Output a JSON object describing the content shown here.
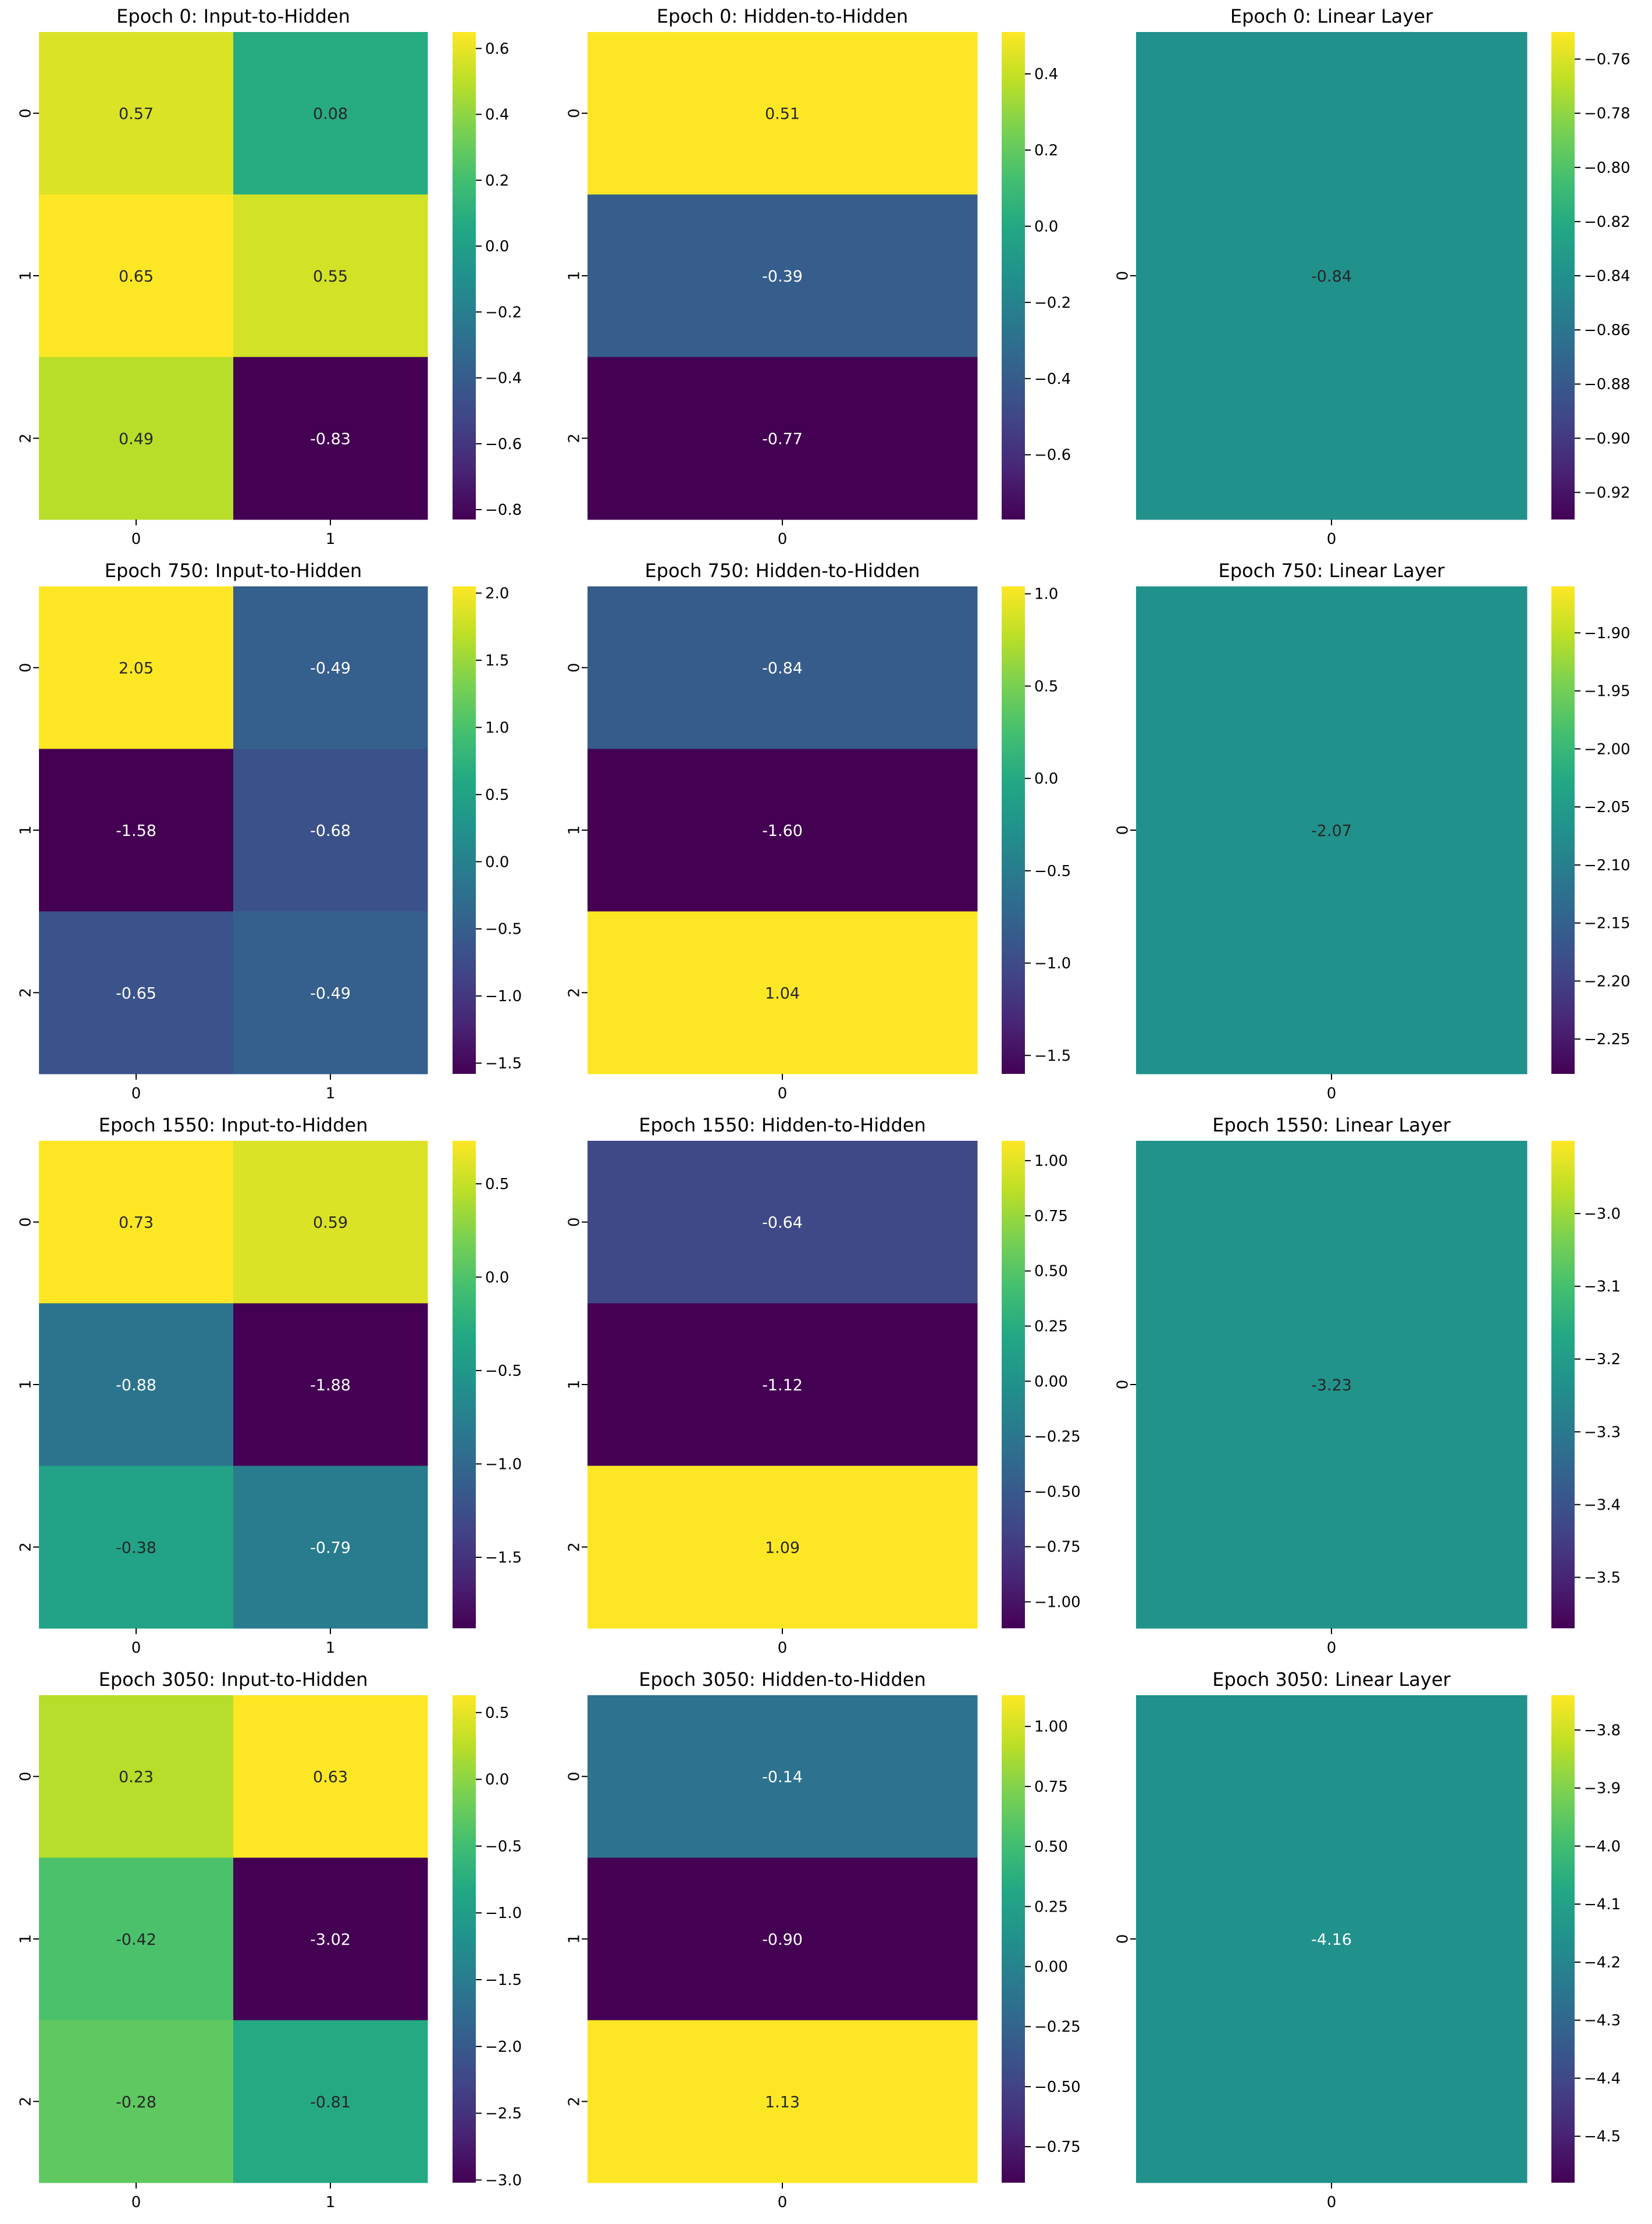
{
  "colormap": "viridis",
  "chart_data": [
    {
      "type": "heatmap",
      "title": "Epoch 0: Input-to-Hidden",
      "row_labels": [
        "0",
        "1",
        "2"
      ],
      "col_labels": [
        "0",
        "1"
      ],
      "values": [
        [
          0.57,
          0.08
        ],
        [
          0.65,
          0.55
        ],
        [
          0.49,
          -0.83
        ]
      ],
      "colorbar": {
        "vmin": -0.83,
        "vmax": 0.65,
        "ticks": [
          0.6,
          0.4,
          0.2,
          0.0,
          -0.2,
          -0.4,
          -0.6,
          -0.8
        ],
        "tick_labels": [
          "0.6",
          "0.4",
          "0.2",
          "0.0",
          "−0.2",
          "−0.4",
          "−0.6",
          "−0.8"
        ]
      }
    },
    {
      "type": "heatmap",
      "title": "Epoch 0: Hidden-to-Hidden",
      "row_labels": [
        "0",
        "1",
        "2"
      ],
      "col_labels": [
        "0"
      ],
      "values": [
        [
          0.51
        ],
        [
          -0.39
        ],
        [
          -0.77
        ]
      ],
      "colorbar": {
        "vmin": -0.77,
        "vmax": 0.51,
        "ticks": [
          0.4,
          0.2,
          0.0,
          -0.2,
          -0.4,
          -0.6
        ],
        "tick_labels": [
          "0.4",
          "0.2",
          "0.0",
          "−0.2",
          "−0.4",
          "−0.6"
        ]
      }
    },
    {
      "type": "heatmap",
      "title": "Epoch 0: Linear Layer",
      "row_labels": [
        "0"
      ],
      "col_labels": [
        "0"
      ],
      "values": [
        [
          -0.84
        ]
      ],
      "colorbar": {
        "vmin": -0.93,
        "vmax": -0.75,
        "ticks": [
          -0.76,
          -0.78,
          -0.8,
          -0.82,
          -0.84,
          -0.86,
          -0.88,
          -0.9,
          -0.92
        ],
        "tick_labels": [
          "−0.76",
          "−0.78",
          "−0.80",
          "−0.82",
          "−0.84",
          "−0.86",
          "−0.88",
          "−0.90",
          "−0.92"
        ]
      }
    },
    {
      "type": "heatmap",
      "title": "Epoch 750: Input-to-Hidden",
      "row_labels": [
        "0",
        "1",
        "2"
      ],
      "col_labels": [
        "0",
        "1"
      ],
      "values": [
        [
          2.05,
          -0.49
        ],
        [
          -1.58,
          -0.68
        ],
        [
          -0.65,
          -0.49
        ]
      ],
      "colorbar": {
        "vmin": -1.58,
        "vmax": 2.05,
        "ticks": [
          2.0,
          1.5,
          1.0,
          0.5,
          0.0,
          -0.5,
          -1.0,
          -1.5
        ],
        "tick_labels": [
          "2.0",
          "1.5",
          "1.0",
          "0.5",
          "0.0",
          "−0.5",
          "−1.0",
          "−1.5"
        ]
      }
    },
    {
      "type": "heatmap",
      "title": "Epoch 750: Hidden-to-Hidden",
      "row_labels": [
        "0",
        "1",
        "2"
      ],
      "col_labels": [
        "0"
      ],
      "values": [
        [
          -0.84
        ],
        [
          -1.6
        ],
        [
          1.04
        ]
      ],
      "colorbar": {
        "vmin": -1.6,
        "vmax": 1.04,
        "ticks": [
          1.0,
          0.5,
          0.0,
          -0.5,
          -1.0,
          -1.5
        ],
        "tick_labels": [
          "1.0",
          "0.5",
          "0.0",
          "−0.5",
          "−1.0",
          "−1.5"
        ]
      }
    },
    {
      "type": "heatmap",
      "title": "Epoch 750: Linear Layer",
      "row_labels": [
        "0"
      ],
      "col_labels": [
        "0"
      ],
      "values": [
        [
          -2.07
        ]
      ],
      "colorbar": {
        "vmin": -2.28,
        "vmax": -1.86,
        "ticks": [
          -1.9,
          -1.95,
          -2.0,
          -2.05,
          -2.1,
          -2.15,
          -2.2,
          -2.25
        ],
        "tick_labels": [
          "−1.90",
          "−1.95",
          "−2.00",
          "−2.05",
          "−2.10",
          "−2.15",
          "−2.20",
          "−2.25"
        ]
      }
    },
    {
      "type": "heatmap",
      "title": "Epoch 1550: Input-to-Hidden",
      "row_labels": [
        "0",
        "1",
        "2"
      ],
      "col_labels": [
        "0",
        "1"
      ],
      "values": [
        [
          0.73,
          0.59
        ],
        [
          -0.88,
          -1.88
        ],
        [
          -0.38,
          -0.79
        ]
      ],
      "colorbar": {
        "vmin": -1.88,
        "vmax": 0.73,
        "ticks": [
          0.5,
          0.0,
          -0.5,
          -1.0,
          -1.5
        ],
        "tick_labels": [
          "0.5",
          "0.0",
          "−0.5",
          "−1.0",
          "−1.5"
        ]
      }
    },
    {
      "type": "heatmap",
      "title": "Epoch 1550: Hidden-to-Hidden",
      "row_labels": [
        "0",
        "1",
        "2"
      ],
      "col_labels": [
        "0"
      ],
      "values": [
        [
          -0.64
        ],
        [
          -1.12
        ],
        [
          1.09
        ]
      ],
      "colorbar": {
        "vmin": -1.12,
        "vmax": 1.09,
        "ticks": [
          1.0,
          0.75,
          0.5,
          0.25,
          0.0,
          -0.25,
          -0.5,
          -0.75,
          -1.0
        ],
        "tick_labels": [
          "1.00",
          "0.75",
          "0.50",
          "0.25",
          "0.00",
          "−0.25",
          "−0.50",
          "−0.75",
          "−1.00"
        ]
      }
    },
    {
      "type": "heatmap",
      "title": "Epoch 1550: Linear Layer",
      "row_labels": [
        "0"
      ],
      "col_labels": [
        "0"
      ],
      "values": [
        [
          -3.23
        ]
      ],
      "colorbar": {
        "vmin": -3.57,
        "vmax": -2.9,
        "ticks": [
          -3.0,
          -3.1,
          -3.2,
          -3.3,
          -3.4,
          -3.5
        ],
        "tick_labels": [
          "−3.0",
          "−3.1",
          "−3.2",
          "−3.3",
          "−3.4",
          "−3.5"
        ]
      }
    },
    {
      "type": "heatmap",
      "title": "Epoch 3050: Input-to-Hidden",
      "row_labels": [
        "0",
        "1",
        "2"
      ],
      "col_labels": [
        "0",
        "1"
      ],
      "values": [
        [
          0.23,
          0.63
        ],
        [
          -0.42,
          -3.02
        ],
        [
          -0.28,
          -0.81
        ]
      ],
      "colorbar": {
        "vmin": -3.02,
        "vmax": 0.63,
        "ticks": [
          0.5,
          0.0,
          -0.5,
          -1.0,
          -1.5,
          -2.0,
          -2.5,
          -3.0
        ],
        "tick_labels": [
          "0.5",
          "0.0",
          "−0.5",
          "−1.0",
          "−1.5",
          "−2.0",
          "−2.5",
          "−3.0"
        ]
      }
    },
    {
      "type": "heatmap",
      "title": "Epoch 3050: Hidden-to-Hidden",
      "row_labels": [
        "0",
        "1",
        "2"
      ],
      "col_labels": [
        "0"
      ],
      "values": [
        [
          -0.14
        ],
        [
          -0.9
        ],
        [
          1.13
        ]
      ],
      "colorbar": {
        "vmin": -0.9,
        "vmax": 1.13,
        "ticks": [
          1.0,
          0.75,
          0.5,
          0.25,
          0.0,
          -0.25,
          -0.5,
          -0.75
        ],
        "tick_labels": [
          "1.00",
          "0.75",
          "0.50",
          "0.25",
          "0.00",
          "−0.25",
          "−0.50",
          "−0.75"
        ]
      }
    },
    {
      "type": "heatmap",
      "title": "Epoch 3050: Linear Layer",
      "row_labels": [
        "0"
      ],
      "col_labels": [
        "0"
      ],
      "values": [
        [
          -4.16
        ]
      ],
      "colorbar": {
        "vmin": -4.58,
        "vmax": -3.74,
        "ticks": [
          -3.8,
          -3.9,
          -4.0,
          -4.1,
          -4.2,
          -4.3,
          -4.4,
          -4.5
        ],
        "tick_labels": [
          "−3.8",
          "−3.9",
          "−4.0",
          "−4.1",
          "−4.2",
          "−4.3",
          "−4.4",
          "−4.5"
        ]
      }
    }
  ]
}
